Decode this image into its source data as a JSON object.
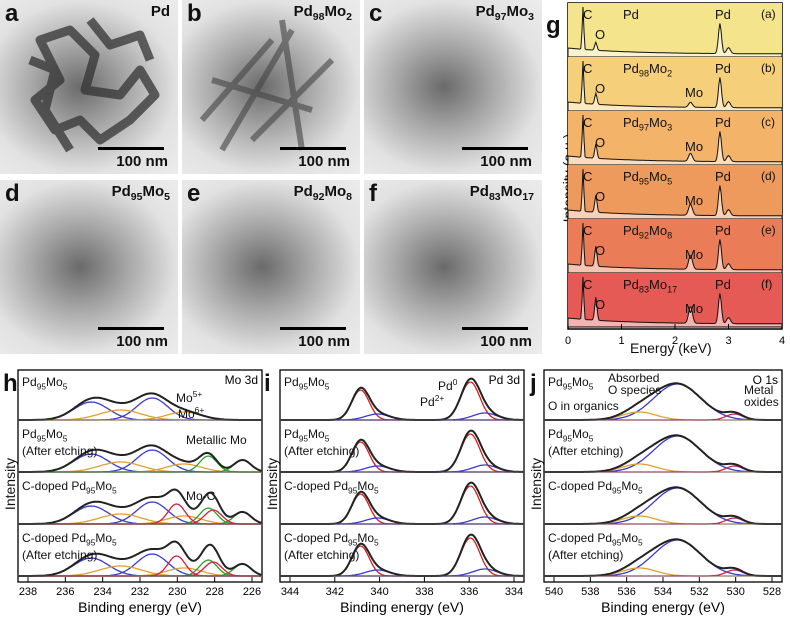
{
  "tem_panels": [
    {
      "letter": "a",
      "sample": "Pd",
      "scale": "100 nm"
    },
    {
      "letter": "b",
      "sample": "Pd98Mo2",
      "scale": "100 nm"
    },
    {
      "letter": "c",
      "sample": "Pd97Mo3",
      "scale": "100 nm"
    },
    {
      "letter": "d",
      "sample": "Pd95Mo5",
      "scale": "100 nm"
    },
    {
      "letter": "e",
      "sample": "Pd92Mo8",
      "scale": "100 nm"
    },
    {
      "letter": "f",
      "sample": "Pd83Mo17",
      "scale": "100 nm"
    }
  ],
  "edx": {
    "letter": "g",
    "ylabel": "Intensity (a.u.)",
    "xlabel": "Energy (keV)",
    "xticks": [
      "0",
      "1",
      "2",
      "3",
      "4"
    ],
    "traces": [
      {
        "tag": "(a)",
        "sample": "Pd",
        "labels": [
          "C",
          "O",
          "Pd"
        ]
      },
      {
        "tag": "(b)",
        "sample": "Pd98Mo2",
        "labels": [
          "C",
          "O",
          "Pd",
          "Mo"
        ]
      },
      {
        "tag": "(c)",
        "sample": "Pd97Mo3",
        "labels": [
          "C",
          "O",
          "Pd",
          "Mo"
        ]
      },
      {
        "tag": "(d)",
        "sample": "Pd95Mo5",
        "labels": [
          "C",
          "O",
          "Pd",
          "Mo"
        ]
      },
      {
        "tag": "(e)",
        "sample": "Pd92Mo8",
        "labels": [
          "C",
          "O",
          "Pd",
          "Mo"
        ]
      },
      {
        "tag": "(f)",
        "sample": "Pd83Mo17",
        "labels": [
          "C",
          "O",
          "Pd",
          "Mo"
        ]
      }
    ],
    "colors": [
      "#f4e48c",
      "#f6cf7a",
      "#f3b46a",
      "#ef9a5d",
      "#ea7d58",
      "#e65a55"
    ]
  },
  "xps": [
    {
      "letter": "h",
      "region": "Mo 3d",
      "xlabel": "Binding energy (eV)",
      "ylabel": "Intensity",
      "xticks": [
        "238",
        "236",
        "234",
        "232",
        "230",
        "228",
        "226"
      ],
      "annotations": [
        "Mo5+",
        "Mo6+",
        "Metallic Mo",
        "Mo-C"
      ]
    },
    {
      "letter": "i",
      "region": "Pd 3d",
      "xlabel": "Binding energy (eV)",
      "ylabel": "Intensity",
      "xticks": [
        "344",
        "342",
        "340",
        "338",
        "336",
        "334"
      ],
      "annotations": [
        "Pd0",
        "Pd2+"
      ]
    },
    {
      "letter": "j",
      "region": "O 1s",
      "xlabel": "Binding energy (eV)",
      "ylabel": "Intensity",
      "xticks": [
        "540",
        "538",
        "536",
        "534",
        "532",
        "530",
        "528"
      ],
      "annotations": [
        "Absorbed O species",
        "O in organics",
        "Metal oxides"
      ]
    }
  ],
  "xps_samples": [
    "Pd95Mo5",
    "Pd95Mo5 (After etching)",
    "C-doped Pd95Mo5",
    "C-doped Pd95Mo5 (After etching)"
  ]
}
